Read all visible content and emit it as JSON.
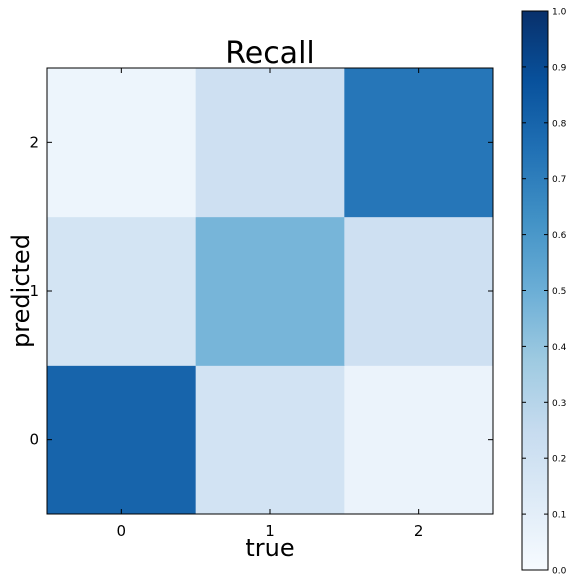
{
  "chart_data": {
    "type": "heatmap",
    "title": "Recall",
    "xlabel": "true",
    "ylabel": "predicted",
    "x_categories": [
      "0",
      "1",
      "2"
    ],
    "y_categories": [
      "0",
      "1",
      "2"
    ],
    "values": [
      [
        0.8,
        0.19,
        0.06
      ],
      [
        0.18,
        0.47,
        0.21
      ],
      [
        0.05,
        0.21,
        0.73
      ]
    ],
    "values_note_order": "values[row][col] where row index = predicted class, col index = true class",
    "colormap": "Blues",
    "vmin": 0.0,
    "vmax": 1.0,
    "colorbar_ticks": [
      "0.0",
      "0.1",
      "0.2",
      "0.3",
      "0.4",
      "0.5",
      "0.6",
      "0.7",
      "0.8",
      "0.9",
      "1.0"
    ],
    "grid": false
  }
}
